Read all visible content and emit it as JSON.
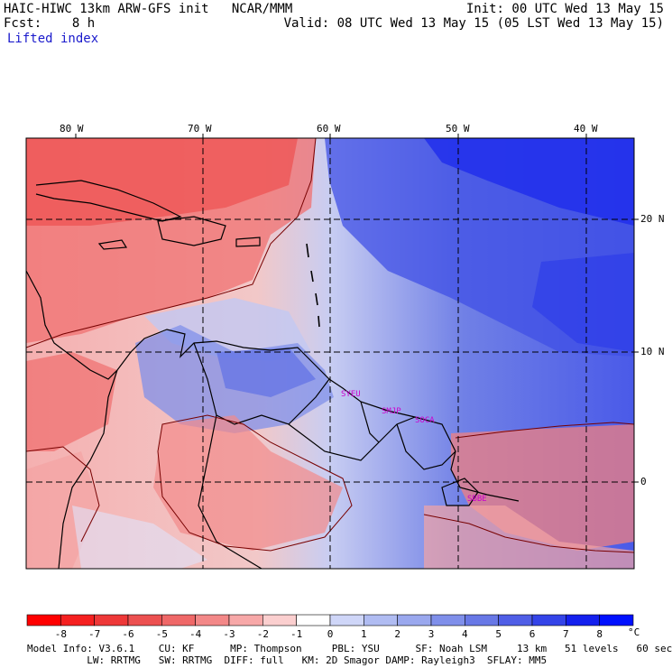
{
  "header": {
    "left_line1": "HAIC-HIWC 13km ARW-GFS init   NCAR/MMM",
    "left_line2": "Fcst:    8 h",
    "field_name": "Lifted index",
    "right_line1": "Init: 00 UTC Wed 13 May 15",
    "right_line2": "Valid: 08 UTC Wed 13 May 15 (05 LST Wed 13 May 15)"
  },
  "map": {
    "lon_labels": [
      "80 W",
      "70 W",
      "60 W",
      "50 W",
      "40 W"
    ],
    "lat_labels": [
      "20 N",
      "10 N",
      "0"
    ],
    "station_labels": [
      "SYEU",
      "SMJP",
      "SOCA",
      "SBBE"
    ],
    "label_color": "#cc00cc"
  },
  "colorbar": {
    "ticks": [
      "-8",
      "-7",
      "-6",
      "-5",
      "-4",
      "-3",
      "-2",
      "-1",
      "0",
      "1",
      "2",
      "3",
      "4",
      "5",
      "6",
      "7",
      "8"
    ],
    "unit": "°C",
    "colors": [
      "#ff0000",
      "#f52020",
      "#ee3838",
      "#ec5050",
      "#ef6868",
      "#f38888",
      "#f7a8a8",
      "#fbcfcf",
      "#ffffff",
      "#cfd6f8",
      "#b0bcf2",
      "#9aa8ee",
      "#7f8fea",
      "#6878e6",
      "#4f5ee6",
      "#3444e8",
      "#1420ee",
      "#0010ff"
    ]
  },
  "footer": {
    "line1": "Model Info: V3.6.1    CU: KF      MP: Thompson     PBL: YSU      SF: Noah LSM     13 km   51 levels   60 sec",
    "line2": "          LW: RRTMG   SW: RRTMG  DIFF: full   KM: 2D Smagor DAMP: Rayleigh3  SFLAY: MM5"
  }
}
